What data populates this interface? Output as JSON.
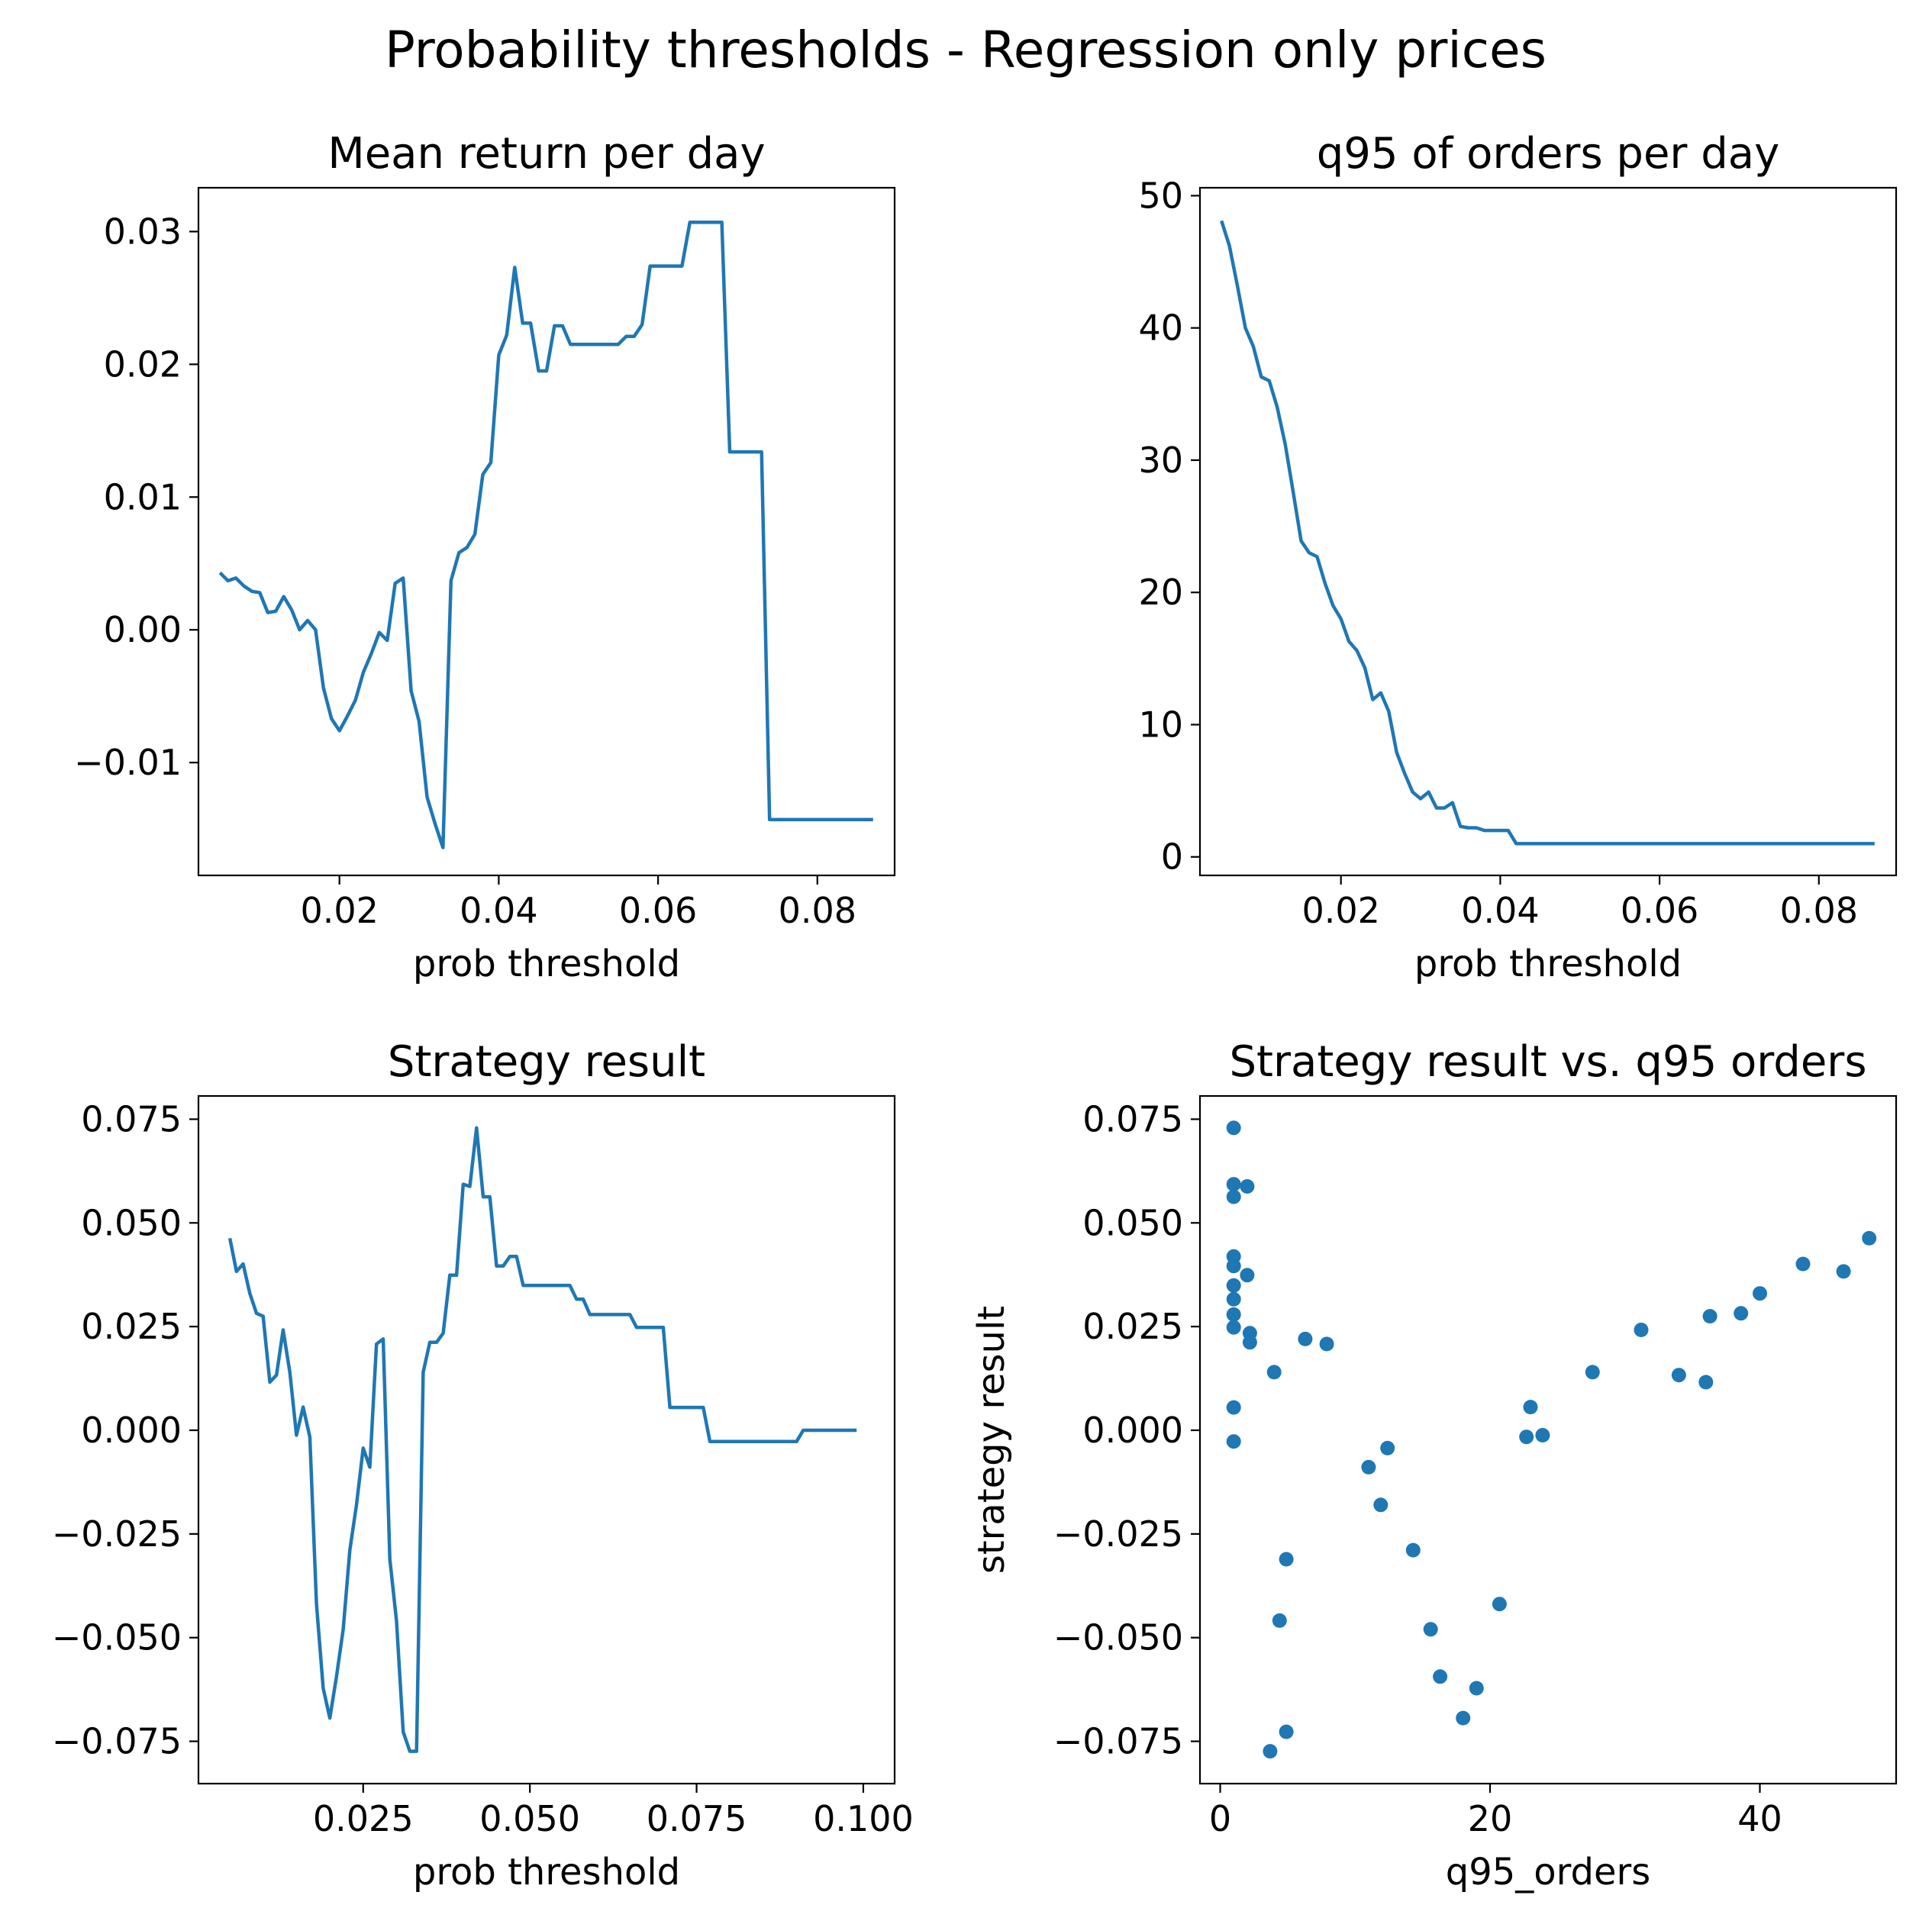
{
  "figure": {
    "title": "Probability thresholds - Regression only prices"
  },
  "colors": {
    "line": "#1f77b4",
    "marker": "#1f77b4",
    "axes": "#000000"
  },
  "chart_data": [
    {
      "type": "line",
      "title": "Mean return per day",
      "xlabel": "prob threshold",
      "ylabel": "",
      "xlim": [
        0.0023,
        0.0897
      ],
      "ylim": [
        -0.0185,
        0.0333
      ],
      "xticks": [
        0.02,
        0.04,
        0.06,
        0.08
      ],
      "xtick_labels": [
        "0.02",
        "0.04",
        "0.06",
        "0.08"
      ],
      "yticks": [
        -0.01,
        0.0,
        0.01,
        0.02,
        0.03
      ],
      "ytick_labels": [
        "−0.01",
        "0.00",
        "0.01",
        "0.02",
        "0.03"
      ],
      "grid": false,
      "series": [
        {
          "x": [
            0.005,
            0.006,
            0.007,
            0.008,
            0.009,
            0.01,
            0.011,
            0.012,
            0.013,
            0.014,
            0.015,
            0.016,
            0.017,
            0.018,
            0.019,
            0.02,
            0.021,
            0.022,
            0.023,
            0.024,
            0.025,
            0.026,
            0.027,
            0.028,
            0.029,
            0.03,
            0.031,
            0.032,
            0.033,
            0.034,
            0.035,
            0.036,
            0.037,
            0.038,
            0.039,
            0.04,
            0.041,
            0.042,
            0.043,
            0.044,
            0.045,
            0.046,
            0.047,
            0.048,
            0.049,
            0.05,
            0.051,
            0.052,
            0.053,
            0.054,
            0.055,
            0.056,
            0.057,
            0.058,
            0.059,
            0.06,
            0.061,
            0.062,
            0.063,
            0.064,
            0.065,
            0.066,
            0.067,
            0.068,
            0.069,
            0.07,
            0.071,
            0.072,
            0.073,
            0.074,
            0.075,
            0.076,
            0.077,
            0.078,
            0.079,
            0.08,
            0.081,
            0.082,
            0.083,
            0.084,
            0.085,
            0.086,
            0.087
          ],
          "y": [
            0.0043,
            0.0037,
            0.0039,
            0.0033,
            0.0029,
            0.0028,
            0.0013,
            0.0014,
            0.0025,
            0.0015,
            0.0,
            0.0007,
            0.0,
            -0.0044,
            -0.0067,
            -0.0076,
            -0.0065,
            -0.0053,
            -0.0032,
            -0.0018,
            -0.0002,
            -0.0008,
            0.0035,
            0.0039,
            -0.0046,
            -0.0069,
            -0.0126,
            -0.0146,
            -0.0164,
            0.0037,
            0.0058,
            0.0062,
            0.0072,
            0.0117,
            0.0126,
            0.0207,
            0.0222,
            0.0273,
            0.0231,
            0.0231,
            0.0195,
            0.0195,
            0.0229,
            0.0229,
            0.0215,
            0.0215,
            0.0215,
            0.0215,
            0.0215,
            0.0215,
            0.0215,
            0.0221,
            0.0221,
            0.023,
            0.0274,
            0.0274,
            0.0274,
            0.0274,
            0.0274,
            0.0307,
            0.0307,
            0.0307,
            0.0307,
            0.0307,
            0.0134,
            0.0134,
            0.0134,
            0.0134,
            0.0134,
            -0.0143,
            -0.0143,
            -0.0143,
            -0.0143,
            -0.0143,
            -0.0143,
            -0.0143,
            -0.0143,
            -0.0143,
            -0.0143,
            -0.0143,
            -0.0143,
            -0.0143,
            -0.0143
          ]
        }
      ]
    },
    {
      "type": "line",
      "title": "q95 of orders per day",
      "xlabel": "prob threshold",
      "ylabel": "",
      "xlim": [
        0.0023,
        0.0897
      ],
      "ylim": [
        -1.4,
        50.6
      ],
      "xticks": [
        0.02,
        0.04,
        0.06,
        0.08
      ],
      "xtick_labels": [
        "0.02",
        "0.04",
        "0.06",
        "0.08"
      ],
      "yticks": [
        0,
        10,
        20,
        30,
        40,
        50
      ],
      "ytick_labels": [
        "0",
        "10",
        "20",
        "30",
        "40",
        "50"
      ],
      "grid": false,
      "series": [
        {
          "x": [
            0.005,
            0.006,
            0.007,
            0.008,
            0.009,
            0.01,
            0.011,
            0.012,
            0.013,
            0.014,
            0.015,
            0.016,
            0.017,
            0.018,
            0.019,
            0.02,
            0.021,
            0.022,
            0.023,
            0.024,
            0.025,
            0.026,
            0.027,
            0.028,
            0.029,
            0.03,
            0.031,
            0.032,
            0.033,
            0.034,
            0.035,
            0.036,
            0.037,
            0.038,
            0.039,
            0.04,
            0.041,
            0.042,
            0.043,
            0.044,
            0.045,
            0.046,
            0.047,
            0.048,
            0.049,
            0.05,
            0.051,
            0.052,
            0.053,
            0.054,
            0.055,
            0.056,
            0.057,
            0.058,
            0.059,
            0.06,
            0.061,
            0.062,
            0.063,
            0.064,
            0.065,
            0.066,
            0.067,
            0.068,
            0.069,
            0.07,
            0.071,
            0.072,
            0.073,
            0.074,
            0.075,
            0.076,
            0.077,
            0.078,
            0.079,
            0.08,
            0.081,
            0.082,
            0.083,
            0.084,
            0.085,
            0.086,
            0.087
          ],
          "y": [
            48.1,
            46.2,
            43.2,
            40.0,
            38.6,
            36.3,
            36.0,
            34.0,
            31.2,
            27.6,
            23.9,
            23.0,
            22.7,
            20.7,
            19.0,
            18.0,
            16.3,
            15.6,
            14.3,
            11.9,
            12.4,
            11.0,
            7.9,
            6.3,
            4.9,
            4.4,
            4.9,
            3.7,
            3.7,
            4.1,
            2.3,
            2.2,
            2.2,
            2.0,
            2.0,
            2.0,
            2.0,
            1.0,
            1.0,
            1.0,
            1.0,
            1.0,
            1.0,
            1.0,
            1.0,
            1.0,
            1.0,
            1.0,
            1.0,
            1.0,
            1.0,
            1.0,
            1.0,
            1.0,
            1.0,
            1.0,
            1.0,
            1.0,
            1.0,
            1.0,
            1.0,
            1.0,
            1.0,
            1.0,
            1.0,
            1.0,
            1.0,
            1.0,
            1.0,
            1.0,
            1.0,
            1.0,
            1.0,
            1.0,
            1.0,
            1.0,
            1.0,
            1.0,
            1.0,
            1.0,
            1.0,
            1.0,
            1.0
          ]
        }
      ]
    },
    {
      "type": "line",
      "title": "Strategy result",
      "xlabel": "prob threshold",
      "ylabel": "",
      "xlim": [
        0.0003,
        0.1047
      ],
      "ylim": [
        -0.0852,
        0.0806
      ],
      "xticks": [
        0.025,
        0.05,
        0.075,
        0.1
      ],
      "xtick_labels": [
        "0.025",
        "0.050",
        "0.075",
        "0.100"
      ],
      "yticks": [
        -0.075,
        -0.05,
        -0.025,
        0.0,
        0.025,
        0.05,
        0.075
      ],
      "ytick_labels": [
        "−0.075",
        "−0.050",
        "−0.025",
        "0.000",
        "0.025",
        "0.050",
        "0.075"
      ],
      "grid": false,
      "series": [
        {
          "x": [
            0.005,
            0.006,
            0.007,
            0.008,
            0.009,
            0.01,
            0.011,
            0.012,
            0.013,
            0.014,
            0.015,
            0.016,
            0.017,
            0.018,
            0.019,
            0.02,
            0.021,
            0.022,
            0.023,
            0.024,
            0.025,
            0.026,
            0.027,
            0.028,
            0.029,
            0.03,
            0.031,
            0.032,
            0.033,
            0.034,
            0.035,
            0.036,
            0.037,
            0.038,
            0.039,
            0.04,
            0.041,
            0.042,
            0.043,
            0.044,
            0.045,
            0.046,
            0.047,
            0.048,
            0.049,
            0.05,
            0.051,
            0.052,
            0.053,
            0.054,
            0.055,
            0.056,
            0.057,
            0.058,
            0.059,
            0.06,
            0.061,
            0.062,
            0.063,
            0.064,
            0.065,
            0.066,
            0.067,
            0.068,
            0.069,
            0.07,
            0.071,
            0.072,
            0.073,
            0.074,
            0.075,
            0.076,
            0.077,
            0.078,
            0.079,
            0.08,
            0.081,
            0.082,
            0.083,
            0.084,
            0.085,
            0.086,
            0.087,
            0.088,
            0.089,
            0.09,
            0.091,
            0.092,
            0.093,
            0.094,
            0.095,
            0.096,
            0.097,
            0.098,
            0.099
          ],
          "y": [
            0.0463,
            0.0383,
            0.0401,
            0.033,
            0.0282,
            0.0275,
            0.0116,
            0.0133,
            0.0242,
            0.014,
            -0.0012,
            0.0056,
            -0.0016,
            -0.0419,
            -0.0622,
            -0.0694,
            -0.0594,
            -0.048,
            -0.0289,
            -0.018,
            -0.0043,
            -0.0089,
            0.0208,
            0.022,
            -0.0311,
            -0.0459,
            -0.0727,
            -0.0774,
            -0.0774,
            0.014,
            0.0212,
            0.0212,
            0.0234,
            0.0374,
            0.0374,
            0.0593,
            0.0588,
            0.0729,
            0.0563,
            0.0563,
            0.0396,
            0.0396,
            0.0419,
            0.0419,
            0.0349,
            0.0349,
            0.0349,
            0.0349,
            0.0349,
            0.0349,
            0.0349,
            0.0349,
            0.0316,
            0.0316,
            0.0279,
            0.0279,
            0.0279,
            0.0279,
            0.0279,
            0.0279,
            0.0279,
            0.0248,
            0.0248,
            0.0248,
            0.0248,
            0.0248,
            0.0055,
            0.0055,
            0.0055,
            0.0055,
            0.0055,
            0.0055,
            -0.0027,
            -0.0027,
            -0.0027,
            -0.0027,
            -0.0027,
            -0.0027,
            -0.0027,
            -0.0027,
            -0.0027,
            -0.0027,
            -0.0027,
            -0.0027,
            -0.0027,
            -0.0027,
            0.0,
            0.0,
            0.0,
            0.0,
            0.0,
            0.0,
            0.0,
            0.0,
            0.0
          ]
        }
      ]
    },
    {
      "type": "scatter",
      "title": "Strategy result vs. q95 orders",
      "xlabel": "q95_orders",
      "ylabel": "strategy result",
      "xlim": [
        -1.5,
        50.1
      ],
      "ylim": [
        -0.0852,
        0.0806
      ],
      "xticks": [
        0,
        20,
        40
      ],
      "xtick_labels": [
        "0",
        "20",
        "40"
      ],
      "yticks": [
        -0.075,
        -0.05,
        -0.025,
        0.0,
        0.025,
        0.05,
        0.075
      ],
      "ytick_labels": [
        "−0.075",
        "−0.050",
        "−0.025",
        "0.000",
        "0.025",
        "0.050",
        "0.075"
      ],
      "grid": false,
      "series": [
        {
          "x": [
            1.0,
            1.0,
            2.0,
            1.0,
            2.0,
            1.0,
            1.0,
            1.0,
            1.0,
            1.0,
            1.0,
            2.2,
            2.2,
            4.0,
            1.0,
            1.0,
            6.3,
            7.9,
            4.9,
            4.4,
            3.7,
            4.9,
            11.0,
            11.9,
            12.4,
            14.3,
            15.6,
            16.3,
            18.0,
            19.0,
            20.7,
            22.7,
            23.0,
            23.9,
            27.6,
            31.2,
            34.0,
            36.0,
            36.3,
            38.6,
            40.0,
            43.2,
            46.2,
            48.1
          ],
          "y": [
            0.0729,
            0.0563,
            0.0588,
            0.0593,
            0.0374,
            0.0419,
            0.0396,
            0.0349,
            0.0316,
            0.0279,
            0.0248,
            0.0234,
            0.0212,
            0.014,
            0.0055,
            -0.0027,
            0.022,
            0.0208,
            -0.0311,
            -0.0459,
            -0.0774,
            -0.0727,
            -0.0089,
            -0.018,
            -0.0043,
            -0.0289,
            -0.048,
            -0.0594,
            -0.0694,
            -0.0622,
            -0.0419,
            -0.0016,
            0.0056,
            -0.0012,
            0.014,
            0.0242,
            0.0133,
            0.0116,
            0.0275,
            0.0282,
            0.033,
            0.0401,
            0.0383,
            0.0463
          ]
        }
      ]
    }
  ]
}
